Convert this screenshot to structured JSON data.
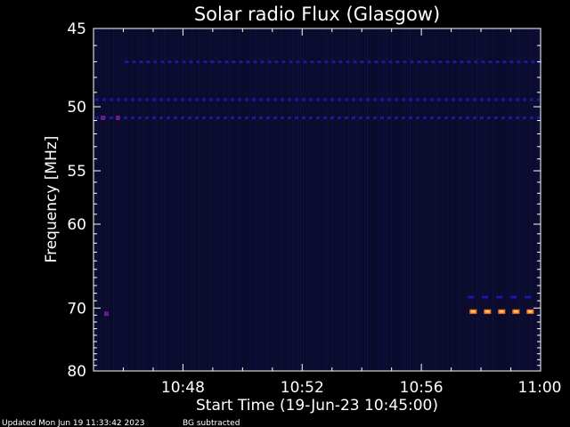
{
  "chart_data": {
    "type": "heatmap",
    "title": "Solar radio Flux (Glasgow)",
    "xlabel": "Start Time (19-Jun-23 10:45:00)",
    "ylabel": "Frequency [MHz]",
    "x_ticks": [
      "10:48",
      "10:52",
      "10:56",
      "11:00"
    ],
    "y_ticks": [
      "45",
      "50",
      "55",
      "60",
      "70",
      "80"
    ],
    "xlim": [
      "10:45",
      "11:00"
    ],
    "ylim": [
      80,
      45
    ],
    "yscale": "reciprocal",
    "grid": false,
    "background_color": "#000000",
    "colors": {
      "background_noise": "#0a0a2a",
      "interference_line": "#1a1aa0",
      "strong_interference": "#6a1a90",
      "hot_band": "#ff7a20",
      "hot_core": "#ffe080"
    },
    "features": [
      {
        "name": "interference",
        "freq_mhz": 47.0,
        "start": "10:46",
        "end": "11:00"
      },
      {
        "name": "interference",
        "freq_mhz": 49.5,
        "start": "10:45",
        "end": "11:00"
      },
      {
        "name": "interference",
        "freq_mhz": 50.8,
        "start": "10:45",
        "end": "11:00"
      },
      {
        "name": "interference",
        "freq_mhz": 68.5,
        "start": "10:57:30",
        "end": "11:00"
      },
      {
        "name": "emission",
        "freq_mhz": 70.5,
        "start": "10:57:30",
        "end": "11:00"
      }
    ]
  },
  "footer": {
    "updated": "Updated Mon Jun 19 11:33:42 2023",
    "note": "BG subtracted"
  }
}
